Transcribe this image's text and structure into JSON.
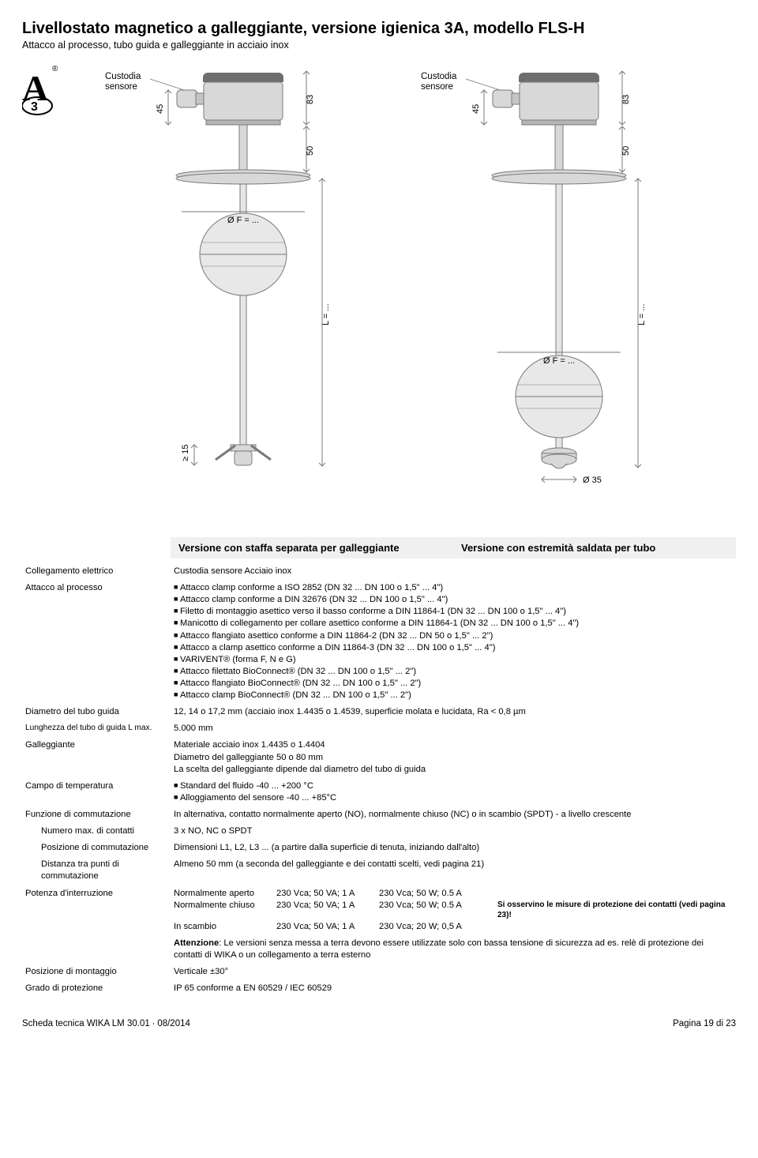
{
  "header": {
    "title": "Livellostato magnetico a galleggiante, versione igienica 3A, modello FLS-H",
    "subtitle": "Attacco al processo, tubo guida e galleggiante in acciaio inox"
  },
  "diagram": {
    "sensor_housing_label": "Custodia sensore",
    "dim_45": "45",
    "dim_83": "83",
    "dim_50": "50",
    "dim_ge15": "≥ 15",
    "dim_L": "L = ...",
    "dim_phiF": "Ø F = ...",
    "dim_phi35": "Ø 35",
    "stroke": "#7a7a7a",
    "fill_dark": "#6e6e6e",
    "fill_light": "#d8d8d8"
  },
  "section_titles": {
    "a": "Versione con staffa separata per galleggiante",
    "b": "Versione con estremità saldata per tubo"
  },
  "specs": {
    "collegamento_label": "Collegamento elettrico",
    "collegamento_value": "Custodia sensore        Acciaio inox",
    "attacco_label": "Attacco al processo",
    "attacco_items": [
      "Attacco clamp conforme a ISO 2852 (DN 32 ... DN 100 o 1,5\" ... 4\")",
      "Attacco clamp conforme a DIN 32676 (DN 32 ... DN 100 o 1,5\" ... 4\")",
      "Filetto di montaggio asettico verso il basso conforme a DIN 11864-1 (DN 32 ... DN 100 o 1,5\" ... 4\")",
      "Manicotto di collegamento per collare asettico conforme a DIN 11864-1 (DN 32 ... DN 100 o 1,5\" ... 4\")",
      "Attacco flangiato asettico conforme a DIN 11864-2 (DN 32 ... DN 50 o 1,5\" ... 2\")",
      "Attacco a clamp asettico conforme a DIN 11864-3 (DN 32 ... DN 100 o 1,5\" ... 4\")",
      "VARIVENT® (forma F, N e G)",
      "Attacco filettato BioConnect® (DN 32 ... DN 100 o 1,5\" ... 2\")",
      "Attacco flangiato BioConnect® (DN 32 ... DN 100 o 1,5\" ... 2\")",
      "Attacco clamp BioConnect® (DN 32 ... DN 100 o 1,5\" ... 2\")"
    ],
    "diametro_tubo_label": "Diametro del tubo guida",
    "diametro_tubo_value": "12, 14 o 17,2 mm (acciaio inox 1.4435 o 1.4539, superficie molata e lucidata, Ra < 0,8 µm",
    "lunghezza_label": "Lunghezza del tubo di guida L max.",
    "lunghezza_value": "5.000 mm",
    "galleggiante_label": "Galleggiante",
    "galleggiante_lines": [
      "Materiale acciaio inox 1.4435 o 1.4404",
      "Diametro del galleggiante 50 o 80 mm",
      "La scelta del galleggiante dipende dal diametro del tubo di guida"
    ],
    "temperatura_label": "Campo di temperatura",
    "temperatura_items": [
      "Standard del fluido -40 ... +200 °C",
      "Alloggiamento del sensore -40 ... +85°C"
    ],
    "funzione_label": "Funzione di commutazione",
    "funzione_value": "In alternativa, contatto normalmente aperto (NO), normalmente chiuso (NC) o in scambio (SPDT) - a livello crescente",
    "numero_contatti_label": "Numero max. di contatti",
    "numero_contatti_value": "3 x NO, NC o SPDT",
    "posizione_comm_label": "Posizione di commutazione",
    "posizione_comm_value": "Dimensioni L1, L2, L3 ... (a partire dalla superficie di tenuta, iniziando dall'alto)",
    "distanza_label": "Distanza tra punti di commutazione",
    "distanza_value": "Almeno 50 mm (a seconda del galleggiante e dei contatti scelti, vedi pagina 21)",
    "potenza_label": "Potenza d'interruzione",
    "power_rows": [
      {
        "c1": "Normalmente aperto",
        "c2": "230 Vca; 50 VA; 1 A",
        "c3": "230 Vca; 50 W; 0.5 A",
        "c4": ""
      },
      {
        "c1": "Normalmente chiuso",
        "c2": "230 Vca; 50 VA; 1 A",
        "c3": "230 Vca; 50 W; 0.5 A",
        "c4": "Si osservino le misure di protezione dei contatti (vedi pagina 23)!"
      },
      {
        "c1": "In scambio",
        "c2": "230 Vca; 50 VA; 1 A",
        "c3": "230 Vca; 20 W; 0,5 A",
        "c4": ""
      }
    ],
    "attenzione_bold": "Attenzione",
    "attenzione_text": ": Le versioni senza messa a terra devono essere utilizzate solo con bassa tensione di sicurezza ad es. relè di protezione dei contatti di WIKA o un collegamento a terra esterno",
    "montaggio_label": "Posizione di montaggio",
    "montaggio_value": "Verticale ±30°",
    "protezione_label": "Grado di protezione",
    "protezione_value": "IP 65 conforme a EN 60529 / IEC 60529"
  },
  "footer": {
    "left": "Scheda tecnica WIKA LM 30.01 ∙ 08/2014",
    "right": "Pagina 19 di 23"
  }
}
